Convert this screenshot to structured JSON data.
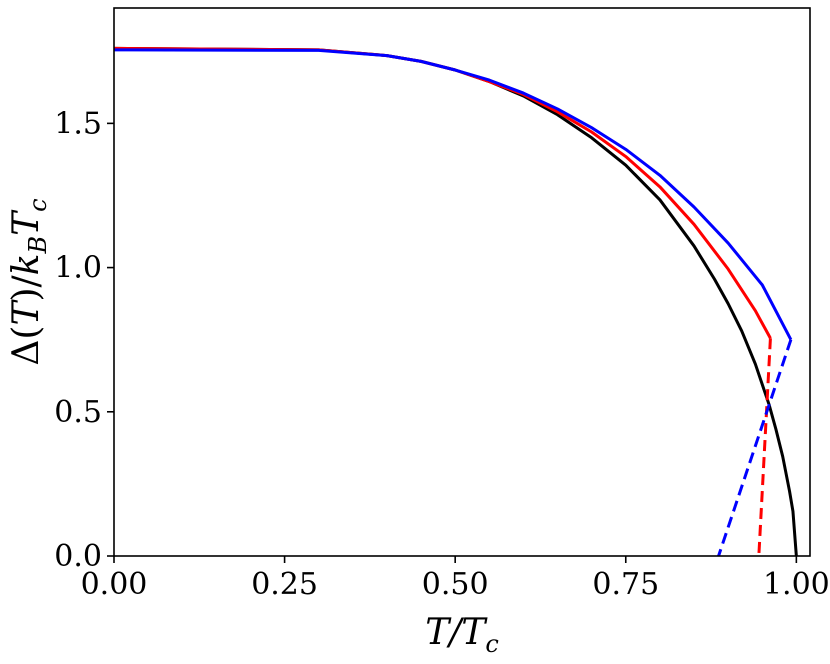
{
  "chart_data": {
    "type": "line",
    "title": "",
    "xlabel": "T/T_c",
    "ylabel": "Δ(T)/k_B T_c",
    "xlabel_parts": {
      "a": "T",
      "b": "/T",
      "sub": "c"
    },
    "ylabel_parts": {
      "a": "Δ(",
      "b": "T",
      "c": ")/",
      "d": "k",
      "sub1": "B",
      "e": "T",
      "sub2": "c"
    },
    "xlim": [
      0.0,
      1.02
    ],
    "ylim": [
      0.0,
      1.9
    ],
    "xticks": [
      0.0,
      0.25,
      0.5,
      0.75,
      1.0
    ],
    "xtick_labels": [
      "0.00",
      "0.25",
      "0.50",
      "0.75",
      "1.00"
    ],
    "yticks": [
      0.0,
      0.5,
      1.0,
      1.5
    ],
    "ytick_labels": [
      "0.0",
      "0.5",
      "1.0",
      "1.5"
    ],
    "grid": false,
    "legend": "none",
    "series": [
      {
        "color": "#000000",
        "style": "solid",
        "x": [
          0.0,
          0.3,
          0.4,
          0.45,
          0.5,
          0.55,
          0.6,
          0.65,
          0.7,
          0.75,
          0.8,
          0.85,
          0.88,
          0.9,
          0.92,
          0.94,
          0.96,
          0.97,
          0.98,
          0.99,
          0.995,
          1.0
        ],
        "y": [
          1.76,
          1.755,
          1.735,
          1.715,
          1.685,
          1.645,
          1.595,
          1.53,
          1.45,
          1.355,
          1.235,
          1.075,
          0.96,
          0.875,
          0.78,
          0.665,
          0.525,
          0.44,
          0.345,
          0.225,
          0.155,
          0.0
        ]
      },
      {
        "color": "#ff0000",
        "style": "solid",
        "x": [
          0.0,
          0.3,
          0.4,
          0.45,
          0.5,
          0.55,
          0.6,
          0.65,
          0.7,
          0.75,
          0.8,
          0.85,
          0.9,
          0.94,
          0.962
        ],
        "y": [
          1.76,
          1.755,
          1.735,
          1.715,
          1.685,
          1.645,
          1.6,
          1.54,
          1.47,
          1.385,
          1.28,
          1.15,
          0.995,
          0.85,
          0.755
        ]
      },
      {
        "color": "#ff0000",
        "style": "dashed",
        "x": [
          0.962,
          0.945
        ],
        "y": [
          0.755,
          0.0
        ]
      },
      {
        "color": "#0000ff",
        "style": "solid",
        "x": [
          0.0,
          0.3,
          0.4,
          0.45,
          0.5,
          0.55,
          0.6,
          0.65,
          0.7,
          0.75,
          0.8,
          0.85,
          0.9,
          0.95,
          0.992
        ],
        "y": [
          1.755,
          1.753,
          1.735,
          1.715,
          1.685,
          1.65,
          1.605,
          1.55,
          1.485,
          1.41,
          1.32,
          1.21,
          1.085,
          0.94,
          0.75
        ]
      },
      {
        "color": "#0000ff",
        "style": "dashed",
        "x": [
          0.992,
          0.886
        ],
        "y": [
          0.75,
          0.0
        ]
      }
    ]
  }
}
